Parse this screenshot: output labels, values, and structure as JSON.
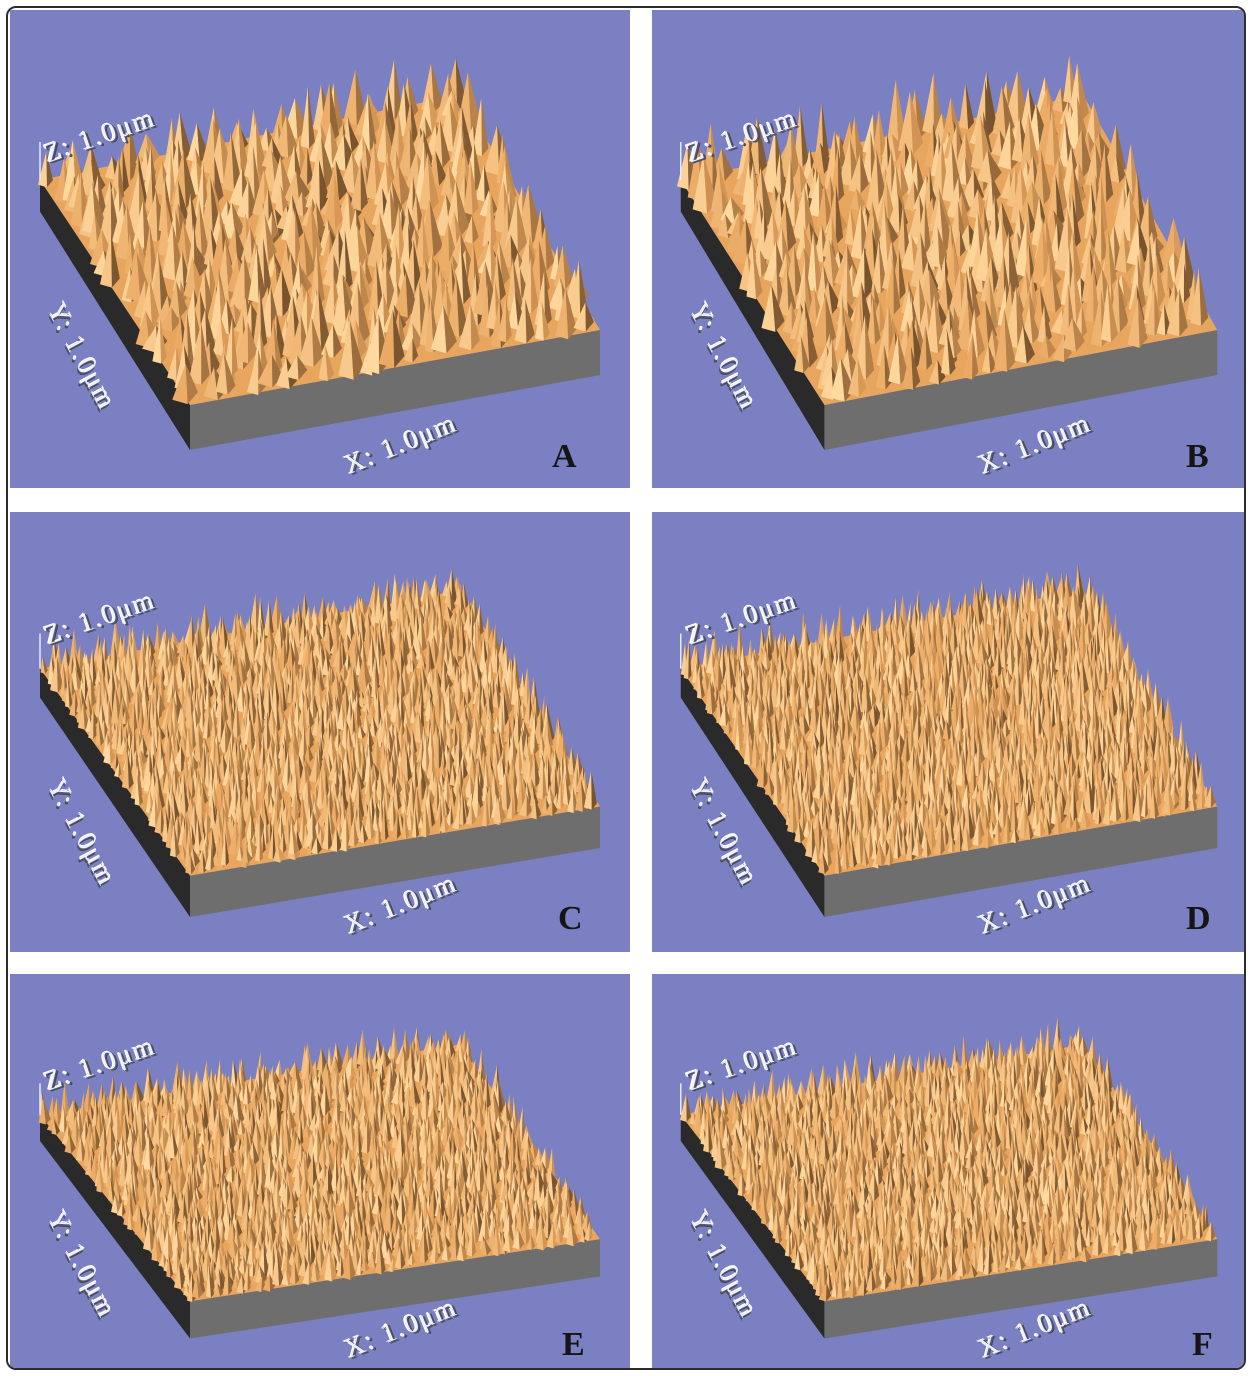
{
  "panels": [
    {
      "id": "A",
      "letter": "A",
      "z_label": "Z: 1.0μm",
      "y_label": "Y: 1.0μm",
      "x_label": "X: 1.0μm",
      "roughness": "coarse"
    },
    {
      "id": "B",
      "letter": "B",
      "z_label": "Z: 1.0μm",
      "y_label": "Y: 1.0μm",
      "x_label": "X: 1.0μm",
      "roughness": "coarse"
    },
    {
      "id": "C",
      "letter": "C",
      "z_label": "Z: 1.0μm",
      "y_label": "Y: 1.0μm",
      "x_label": "X: 1.0μm",
      "roughness": "fine"
    },
    {
      "id": "D",
      "letter": "D",
      "z_label": "Z: 1.0μm",
      "y_label": "Y: 1.0μm",
      "x_label": "X: 1.0μm",
      "roughness": "fine"
    },
    {
      "id": "E",
      "letter": "E",
      "z_label": "Z: 1.0μm",
      "y_label": "Y: 1.0μm",
      "x_label": "X: 1.0μm",
      "roughness": "fine"
    },
    {
      "id": "F",
      "letter": "F",
      "z_label": "Z: 1.0μm",
      "y_label": "Y: 1.0μm",
      "x_label": "X: 1.0μm",
      "roughness": "fine"
    }
  ],
  "colors": {
    "background": "#7a80c2",
    "surface_light": "#ffd9a0",
    "surface_mid": "#e8a55e",
    "surface_dark": "#5a3e22",
    "base_front": "#6e6e6e",
    "base_side": "#2a2a2a"
  }
}
